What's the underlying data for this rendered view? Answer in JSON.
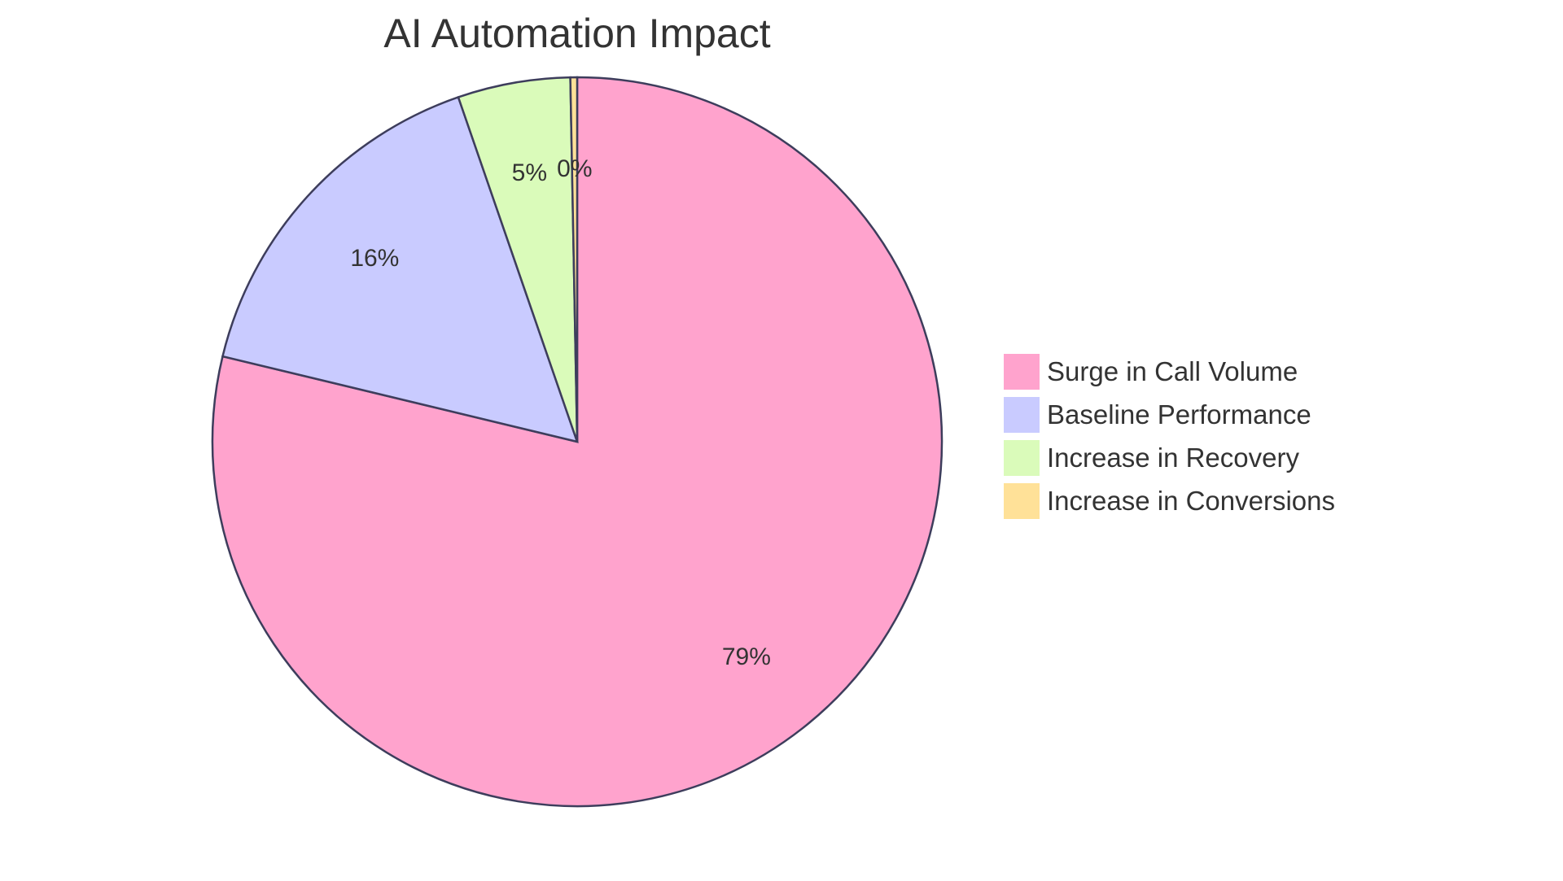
{
  "chart_data": {
    "type": "pie",
    "title": "AI Automation Impact",
    "slices": [
      {
        "label": "Surge in Call Volume",
        "value": 79,
        "display": "79%",
        "color": "#FFA3CD"
      },
      {
        "label": "Baseline Performance",
        "value": 16,
        "display": "16%",
        "color": "#C9CBFF"
      },
      {
        "label": "Increase in Recovery",
        "value": 5,
        "display": "5%",
        "color": "#DAFBBA"
      },
      {
        "label": "Increase in Conversions",
        "value": 0.3,
        "display": "0%",
        "color": "#FFE198"
      }
    ],
    "legend_position": "right",
    "stroke_color": "#3D3D5C"
  }
}
